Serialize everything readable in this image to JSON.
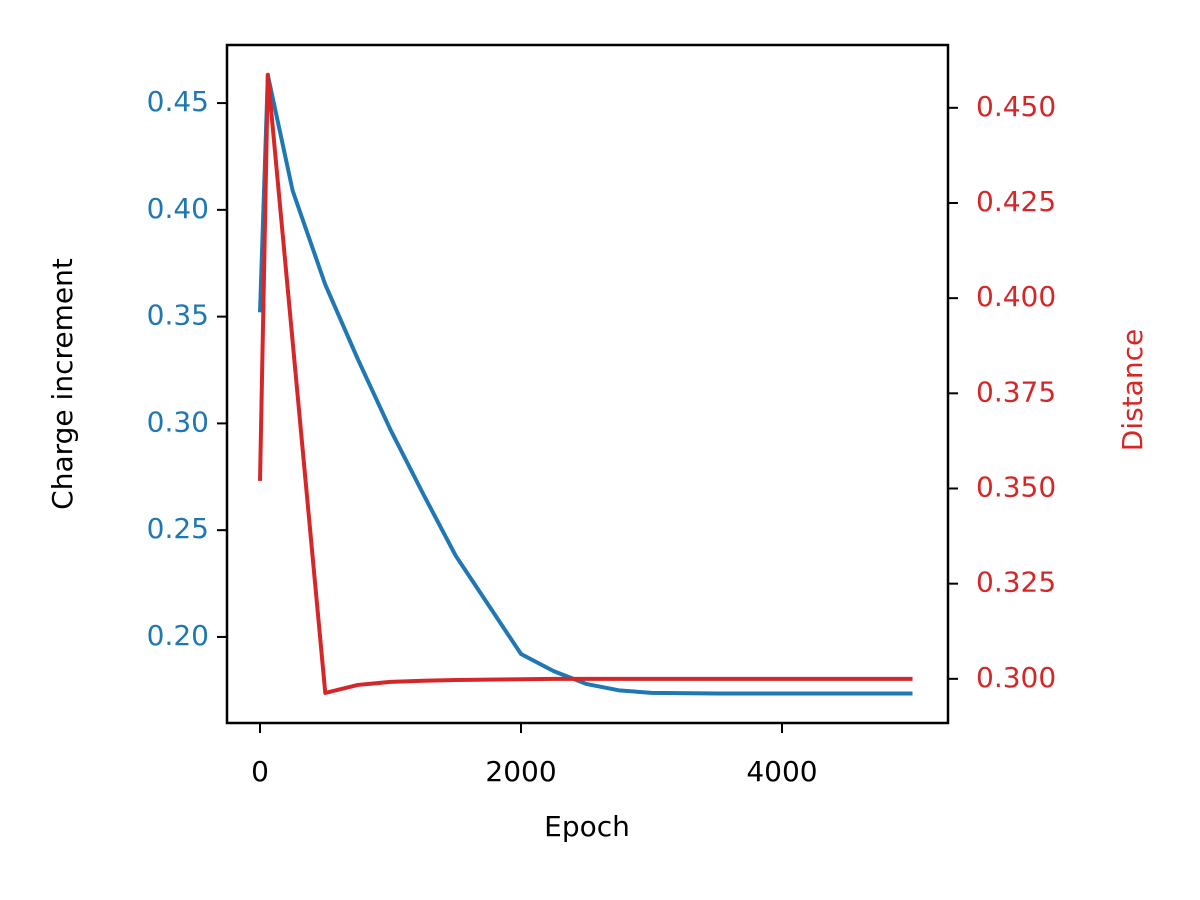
{
  "chart_data": {
    "type": "line",
    "x_label": "Epoch",
    "y_label": "Charge increment",
    "y2_label": "Distance",
    "x": [
      0,
      60,
      250,
      500,
      750,
      1000,
      1250,
      1500,
      1750,
      2000,
      2250,
      2500,
      2750,
      3000,
      3500,
      4000,
      4500,
      5000
    ],
    "series": [
      {
        "name": "Charge increment",
        "color": "#1f77b4",
        "axis": "y",
        "values": [
          0.352,
          0.463,
          0.409,
          0.365,
          0.33,
          0.297,
          0.267,
          0.238,
          0.215,
          0.192,
          0.184,
          0.178,
          0.175,
          0.1738,
          0.1735,
          0.1735,
          0.1735,
          0.1735
        ]
      },
      {
        "name": "Distance",
        "color": "#d62728",
        "axis": "y2",
        "values": [
          0.352,
          0.4587,
          0.3886,
          0.2963,
          0.2984,
          0.2992,
          0.2995,
          0.2997,
          0.2998,
          0.2999,
          0.3,
          0.3,
          0.3,
          0.3,
          0.3,
          0.3,
          0.3,
          0.3
        ]
      }
    ],
    "xlim": [
      -253,
      5272
    ],
    "xticks": [
      0,
      2000,
      4000
    ],
    "ylim": [
      0.1597,
      0.4772
    ],
    "yticks": [
      {
        "value": 0.2,
        "label": "0.20"
      },
      {
        "value": 0.25,
        "label": "0.25"
      },
      {
        "value": 0.3,
        "label": "0.30"
      },
      {
        "value": 0.35,
        "label": "0.35"
      },
      {
        "value": 0.4,
        "label": "0.40"
      },
      {
        "value": 0.45,
        "label": "0.45"
      }
    ],
    "y2lim": [
      0.2884,
      0.4665
    ],
    "y2ticks": [
      {
        "value": 0.3,
        "label": "0.300"
      },
      {
        "value": 0.325,
        "label": "0.325"
      },
      {
        "value": 0.35,
        "label": "0.350"
      },
      {
        "value": 0.375,
        "label": "0.375"
      },
      {
        "value": 0.4,
        "label": "0.400"
      },
      {
        "value": 0.425,
        "label": "0.425"
      },
      {
        "value": 0.45,
        "label": "0.450"
      }
    ],
    "grid": false
  }
}
